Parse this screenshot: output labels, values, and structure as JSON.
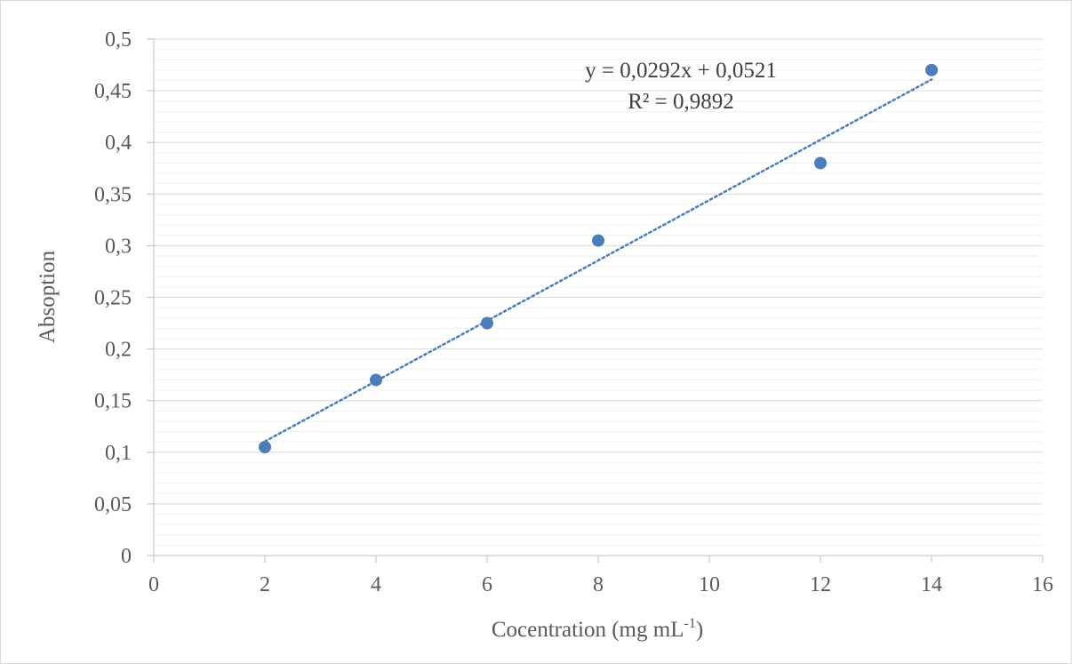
{
  "chart_data": {
    "type": "scatter",
    "title": "",
    "xlabel": "Cocentration (mg mL",
    "xlabel_superscript": "-1",
    "xlabel_suffix": ")",
    "ylabel": "Absoption",
    "xlim": [
      0,
      16
    ],
    "ylim": [
      0,
      0.5
    ],
    "x_ticks": [
      {
        "value": 0,
        "label": "0"
      },
      {
        "value": 2,
        "label": "2"
      },
      {
        "value": 4,
        "label": "4"
      },
      {
        "value": 6,
        "label": "6"
      },
      {
        "value": 8,
        "label": "8"
      },
      {
        "value": 10,
        "label": "10"
      },
      {
        "value": 12,
        "label": "12"
      },
      {
        "value": 14,
        "label": "14"
      },
      {
        "value": 16,
        "label": "16"
      }
    ],
    "y_ticks": [
      {
        "value": 0,
        "label": "0"
      },
      {
        "value": 0.05,
        "label": "0,05"
      },
      {
        "value": 0.1,
        "label": "0,1"
      },
      {
        "value": 0.15,
        "label": "0,15"
      },
      {
        "value": 0.2,
        "label": "0,2"
      },
      {
        "value": 0.25,
        "label": "0,25"
      },
      {
        "value": 0.3,
        "label": "0,3"
      },
      {
        "value": 0.35,
        "label": "0,35"
      },
      {
        "value": 0.4,
        "label": "0,4"
      },
      {
        "value": 0.45,
        "label": "0,45"
      },
      {
        "value": 0.5,
        "label": "0,5"
      }
    ],
    "y_minor_step": 0.01,
    "grid": true,
    "legend": "none",
    "series": [
      {
        "x": [
          2,
          4,
          6,
          8,
          12,
          14
        ],
        "y": [
          0.105,
          0.17,
          0.225,
          0.305,
          0.38,
          0.47
        ],
        "color": "#4a7ebb"
      }
    ],
    "trendline": {
      "type": "linear",
      "slope": 0.0292,
      "intercept": 0.0521,
      "x_range": [
        2,
        14
      ],
      "style": "dotted",
      "color": "#4a7ebb",
      "equation_label": "y = 0,0292x + 0,0521",
      "r2_label": "R² = 0,9892"
    },
    "colors": {
      "major_grid": "#d9d9d9",
      "minor_grid": "#f0f0f0",
      "axis": "#bfbfbf"
    }
  }
}
